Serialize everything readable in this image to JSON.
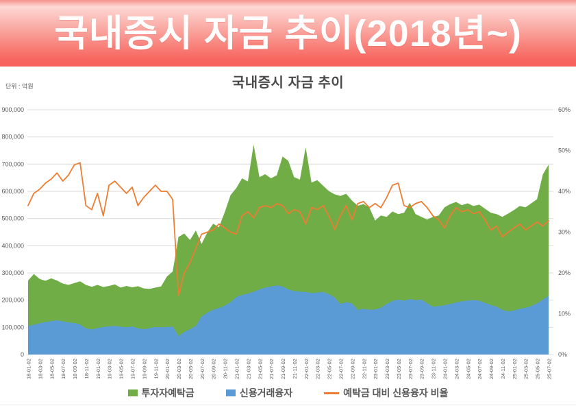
{
  "banner": {
    "title": "국내증시 자금 추이(2018년~)",
    "text_color": "#ffffff",
    "bg_top": "#fdd8d5",
    "bg_bottom": "#f7605a"
  },
  "chart": {
    "title": "국내증시 자금 추이",
    "unit_label": "단위 : 억원",
    "y_left_labels": [
      "0",
      "100,000",
      "200,000",
      "300,000",
      "400,000",
      "500,000",
      "600,000",
      "700,000",
      "800,000",
      "900,000"
    ],
    "y_right_labels": [
      "0%",
      "10%",
      "20%",
      "30%",
      "40%",
      "50%",
      "60%"
    ],
    "gridline_color": "#d9d9d9",
    "axis_text_color": "#595959",
    "legend": [
      {
        "label": "투자자예탁금",
        "color": "#70AD47",
        "marker": "square"
      },
      {
        "label": "신용거래융자",
        "color": "#5B9BD5",
        "marker": "square"
      },
      {
        "label": "예탁금 대비 신용융자 비율",
        "color": "#ED7D31",
        "marker": "line"
      }
    ]
  },
  "chart_data": {
    "type": "area",
    "subtype": "combo-area-line",
    "x_range": "2018-01-02 ~ 2025-07-02",
    "sampling": "monthly estimates read from daily chart",
    "left_axis": {
      "min": 0,
      "max": 900000,
      "tick": 100000,
      "unit": "억원"
    },
    "right_axis": {
      "min": 0,
      "max": 60,
      "tick": 10,
      "unit": "%"
    },
    "legend_position": "bottom",
    "grid": true,
    "x_tick_labels": [
      "18-01-02",
      "18-03-02",
      "18-05-02",
      "18-07-02",
      "18-09-02",
      "18-11-02",
      "19-01-02",
      "19-03-02",
      "19-05-02",
      "19-07-02",
      "19-09-02",
      "19-11-02",
      "20-01-02",
      "20-03-02",
      "20-05-02",
      "20-07-02",
      "20-09-02",
      "20-11-02",
      "21-01-02",
      "21-03-02",
      "21-05-02",
      "21-07-02",
      "21-09-02",
      "21-11-02",
      "22-01-02",
      "22-03-02",
      "22-05-02",
      "22-07-02",
      "22-09-02",
      "22-11-02",
      "23-01-02",
      "23-03-02",
      "23-05-02",
      "23-07-02",
      "23-09-02",
      "23-11-02",
      "24-01-02",
      "24-03-02",
      "24-05-02",
      "24-07-02",
      "24-09-02",
      "24-11-02",
      "25-01-02",
      "25-03-02",
      "25-05-02",
      "25-07-02"
    ],
    "series": [
      {
        "name": "투자자예탁금",
        "type": "area",
        "axis": "left",
        "color": "#70AD47",
        "values": [
          272000,
          296000,
          278000,
          271000,
          280000,
          272000,
          261000,
          256000,
          263000,
          269000,
          256000,
          249000,
          256000,
          248000,
          252000,
          258000,
          246000,
          252000,
          247000,
          251000,
          243000,
          241000,
          246000,
          250000,
          287000,
          305000,
          432000,
          445000,
          421000,
          456000,
          407000,
          449000,
          481000,
          468000,
          523000,
          586000,
          612000,
          648000,
          636000,
          772000,
          652000,
          663000,
          648000,
          659000,
          728000,
          712000,
          652000,
          643000,
          762000,
          632000,
          641000,
          621000,
          601000,
          589000,
          583000,
          591000,
          566000,
          547000,
          553000,
          541000,
          492000,
          511000,
          506000,
          526000,
          516000,
          521000,
          558000,
          516000,
          506000,
          496000,
          506000,
          511000,
          541000,
          553000,
          561000,
          549000,
          556000,
          546000,
          551000,
          536000,
          521000,
          516000,
          506000,
          518000,
          531000,
          546000,
          541000,
          556000,
          571000,
          662000,
          698000
        ]
      },
      {
        "name": "신용거래융자",
        "type": "area",
        "axis": "left",
        "color": "#5B9BD5",
        "values": [
          104000,
          110000,
          115000,
          119000,
          123000,
          126000,
          122000,
          118000,
          116000,
          110000,
          96000,
          92000,
          97000,
          101000,
          103000,
          105000,
          102000,
          100000,
          103000,
          96000,
          93000,
          97000,
          101000,
          100000,
          101000,
          103000,
          68000,
          83000,
          93000,
          105000,
          140000,
          154000,
          165000,
          171000,
          180000,
          192000,
          211000,
          219000,
          224000,
          231000,
          239000,
          246000,
          250000,
          254000,
          250000,
          239000,
          234000,
          231000,
          230000,
          226000,
          228000,
          230000,
          222000,
          210000,
          186000,
          192000,
          188000,
          164000,
          168000,
          165000,
          166000,
          172000,
          186000,
          197000,
          202000,
          198000,
          204000,
          200000,
          202000,
          188000,
          176000,
          178000,
          181000,
          186000,
          191000,
          196000,
          198000,
          200000,
          198000,
          190000,
          182000,
          176000,
          164000,
          158000,
          162000,
          168000,
          172000,
          178000,
          188000,
          202000,
          216000
        ]
      },
      {
        "name": "예탁금 대비 신용융자 비율",
        "type": "line",
        "axis": "right",
        "color": "#ED7D31",
        "values": [
          36.5,
          39.5,
          40.5,
          42,
          43,
          44.5,
          42.5,
          44,
          46.5,
          47,
          36.5,
          35.5,
          39.5,
          34,
          41.5,
          42.5,
          41,
          39.5,
          41,
          36.5,
          38.5,
          40,
          41.5,
          40,
          40,
          38,
          14.5,
          20,
          22.5,
          26,
          29.5,
          30,
          30.5,
          32,
          31,
          30,
          29.5,
          34,
          35,
          33.5,
          36,
          36.5,
          36,
          37,
          36.5,
          34.5,
          35.5,
          35,
          32,
          36,
          35.5,
          36.5,
          34,
          30.6,
          34,
          36.5,
          33,
          37,
          37.5,
          36,
          37,
          36,
          38.5,
          41.5,
          42,
          36.5,
          36,
          37,
          37.5,
          36,
          34,
          33,
          31,
          34,
          36,
          35,
          35.5,
          34.5,
          35,
          33,
          30.5,
          31.5,
          28.8,
          30,
          31,
          32,
          30.5,
          31.5,
          32.5,
          31.5,
          32.8
        ]
      }
    ]
  }
}
